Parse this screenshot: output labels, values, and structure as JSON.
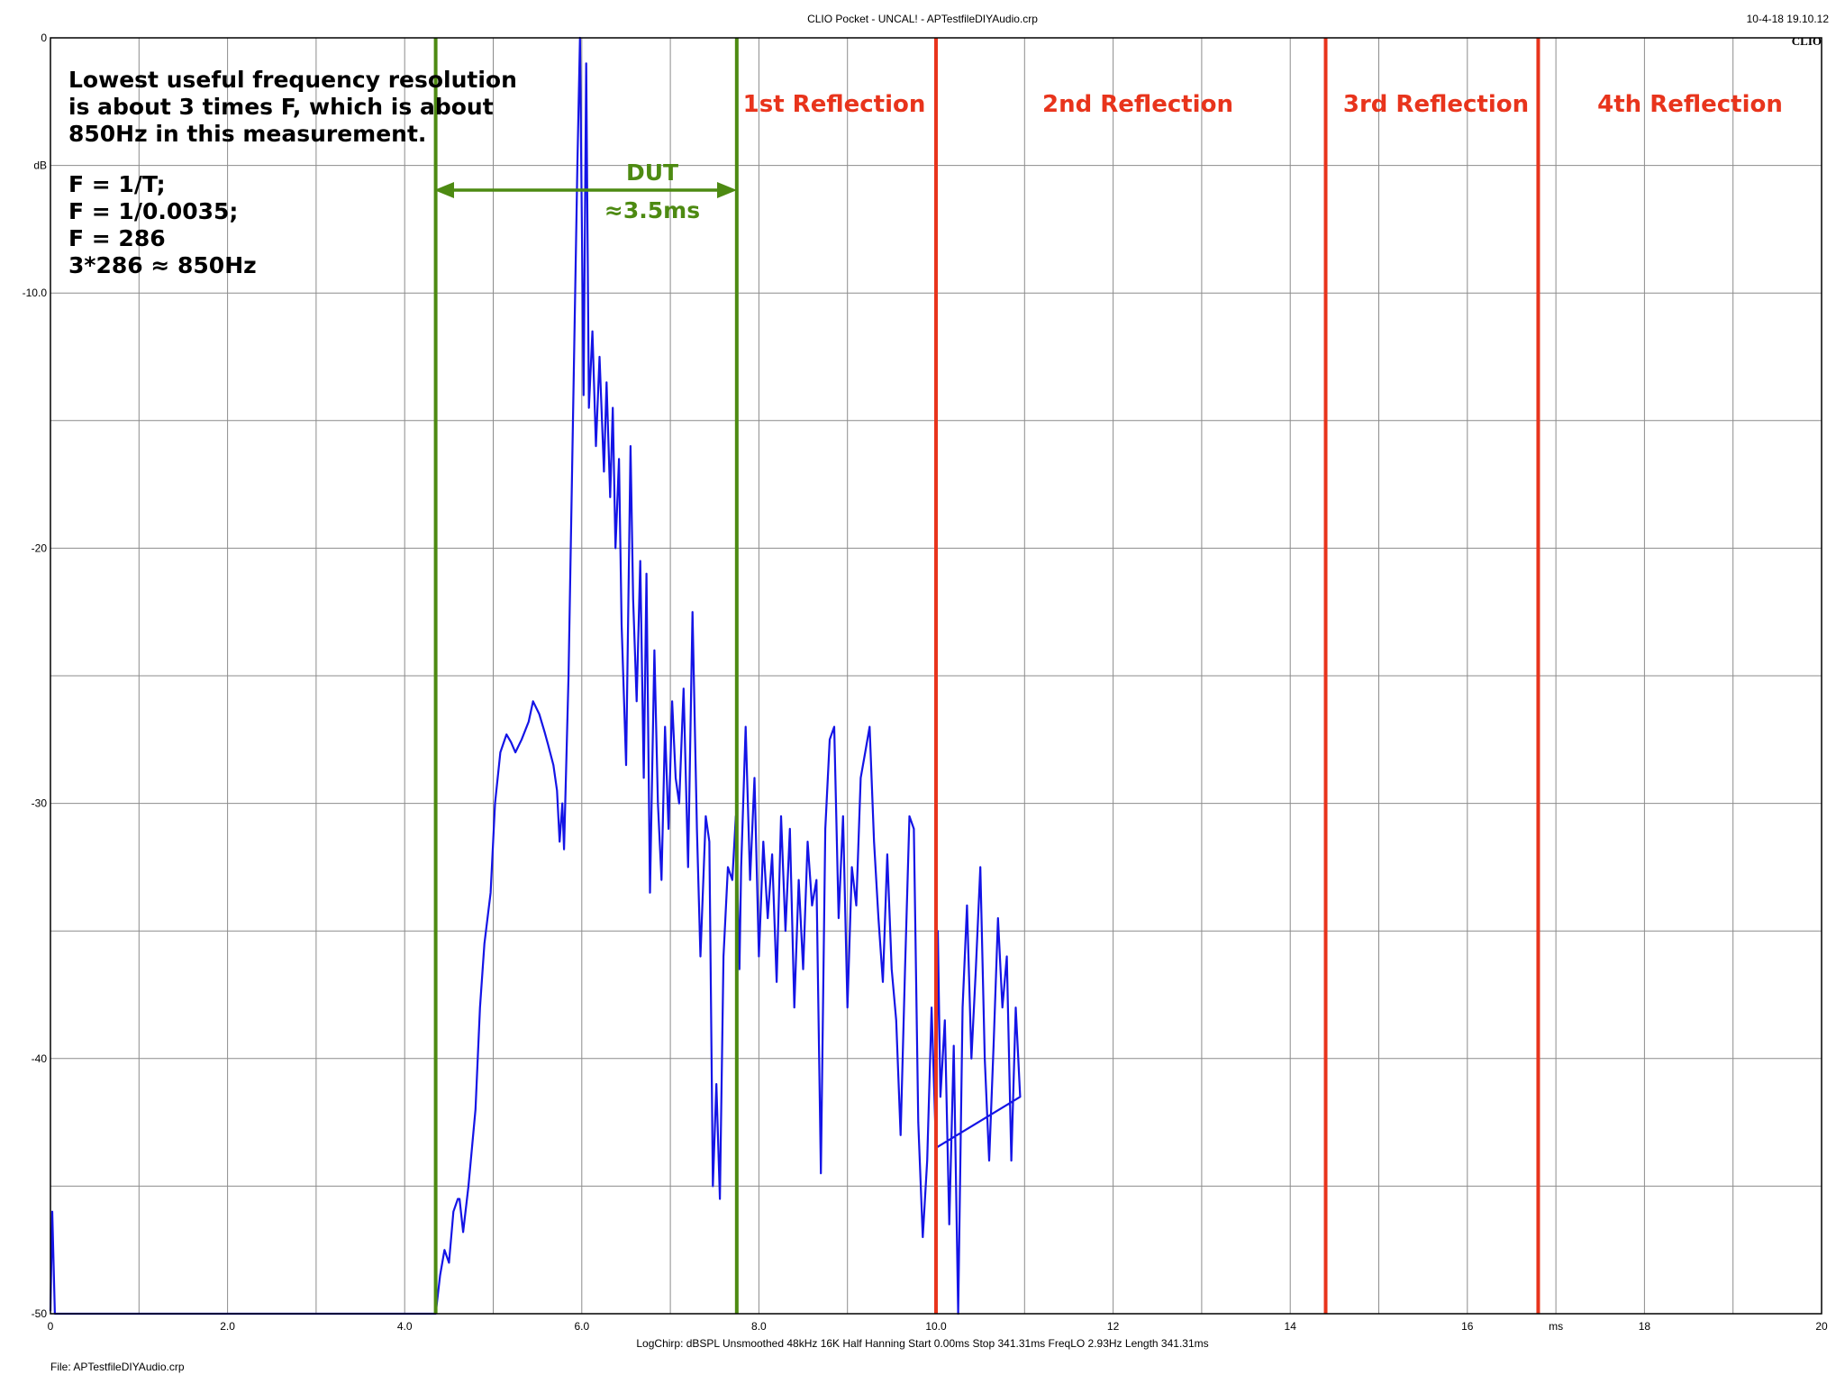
{
  "header": {
    "title": "CLIO Pocket - UNCAL! - APTestfileDIYAudio.crp",
    "date": "10-4-18 19.10.12",
    "brand": "CLIO"
  },
  "footer": {
    "params": "LogChirp:  dBSPL  Unsmoothed  48kHz  16K  Half Hanning  Start 0.00ms  Stop 341.31ms  FreqLO 2.93Hz  Length 341.31ms",
    "file": "File: APTestfileDIYAudio.crp"
  },
  "annotations": {
    "note_lines": [
      "Lowest useful frequency resolution",
      "is about 3 times F, which is about",
      "850Hz in this measurement."
    ],
    "formula_lines": [
      "F = 1/T;",
      "F = 1/0.0035;",
      "F = 286",
      "3*286 ≈ 850Hz"
    ],
    "dut_label": "DUT",
    "dut_time": "≈3.5ms",
    "reflections": [
      "1st Reflection",
      "2nd Reflection",
      "3rd Reflection",
      "4th Reflection"
    ]
  },
  "colors": {
    "trace": "#1414e6",
    "marker_green": "#4d8a12",
    "marker_red": "#e8341c",
    "grid": "#8c8c8c"
  },
  "chart_data": {
    "type": "line",
    "title": "CLIO Pocket - UNCAL! - APTestfileDIYAudio.crp",
    "xlabel": "ms",
    "ylabel": "dB",
    "xlim": [
      0,
      20
    ],
    "ylim": [
      -50,
      0
    ],
    "grid": true,
    "x_ticks": [
      "0",
      "2.0",
      "4.0",
      "6.0",
      "8.0",
      "10.0",
      "12",
      "14",
      "16",
      "ms",
      "18",
      "20"
    ],
    "y_ticks": [
      "0",
      "dB",
      "-10.0",
      "-20",
      "-30",
      "-40",
      "-50"
    ],
    "markers": [
      {
        "x": 4.35,
        "color": "green"
      },
      {
        "x": 7.75,
        "color": "green"
      },
      {
        "x": 10.0,
        "color": "red"
      },
      {
        "x": 14.4,
        "color": "red"
      },
      {
        "x": 16.8,
        "color": "red"
      }
    ],
    "series": [
      {
        "points": [
          [
            0.0,
            -49.9
          ],
          [
            0.02,
            -46.0
          ],
          [
            0.05,
            -50.0
          ],
          [
            4.3,
            -50.0
          ],
          [
            4.35,
            -50.0
          ],
          [
            4.4,
            -48.5
          ],
          [
            4.45,
            -47.5
          ],
          [
            4.5,
            -48.0
          ],
          [
            4.55,
            -46.0
          ],
          [
            4.6,
            -45.5
          ],
          [
            4.62,
            -45.5
          ],
          [
            4.66,
            -46.8
          ],
          [
            4.72,
            -45.0
          ],
          [
            4.8,
            -42.0
          ],
          [
            4.85,
            -38.0
          ],
          [
            4.9,
            -35.5
          ],
          [
            4.97,
            -33.5
          ],
          [
            5.02,
            -30.0
          ],
          [
            5.08,
            -28.0
          ],
          [
            5.15,
            -27.3
          ],
          [
            5.2,
            -27.6
          ],
          [
            5.25,
            -28.0
          ],
          [
            5.32,
            -27.5
          ],
          [
            5.4,
            -26.8
          ],
          [
            5.45,
            -26.0
          ],
          [
            5.52,
            -26.5
          ],
          [
            5.58,
            -27.2
          ],
          [
            5.62,
            -27.7
          ],
          [
            5.68,
            -28.5
          ],
          [
            5.72,
            -29.5
          ],
          [
            5.75,
            -31.5
          ],
          [
            5.78,
            -30.0
          ],
          [
            5.8,
            -31.8
          ],
          [
            5.85,
            -25.0
          ],
          [
            5.9,
            -15.0
          ],
          [
            5.95,
            -5.0
          ],
          [
            5.98,
            0.0
          ],
          [
            6.02,
            -14.0
          ],
          [
            6.05,
            -1.0
          ],
          [
            6.08,
            -14.5
          ],
          [
            6.12,
            -11.5
          ],
          [
            6.16,
            -16.0
          ],
          [
            6.2,
            -12.5
          ],
          [
            6.25,
            -17.0
          ],
          [
            6.28,
            -13.5
          ],
          [
            6.32,
            -18.0
          ],
          [
            6.35,
            -14.5
          ],
          [
            6.38,
            -20.0
          ],
          [
            6.42,
            -16.5
          ],
          [
            6.45,
            -23.0
          ],
          [
            6.5,
            -28.5
          ],
          [
            6.55,
            -16.0
          ],
          [
            6.58,
            -22.0
          ],
          [
            6.62,
            -26.0
          ],
          [
            6.66,
            -20.5
          ],
          [
            6.7,
            -29.0
          ],
          [
            6.73,
            -21.0
          ],
          [
            6.77,
            -33.5
          ],
          [
            6.82,
            -24.0
          ],
          [
            6.86,
            -30.0
          ],
          [
            6.9,
            -33.0
          ],
          [
            6.94,
            -27.0
          ],
          [
            6.98,
            -31.0
          ],
          [
            7.02,
            -26.0
          ],
          [
            7.06,
            -29.0
          ],
          [
            7.1,
            -30.0
          ],
          [
            7.15,
            -25.5
          ],
          [
            7.2,
            -32.5
          ],
          [
            7.25,
            -22.5
          ],
          [
            7.3,
            -31.0
          ],
          [
            7.34,
            -36.0
          ],
          [
            7.4,
            -30.5
          ],
          [
            7.44,
            -31.5
          ],
          [
            7.48,
            -45.0
          ],
          [
            7.52,
            -41.0
          ],
          [
            7.56,
            -45.5
          ],
          [
            7.6,
            -36.0
          ],
          [
            7.65,
            -32.5
          ],
          [
            7.7,
            -33.0
          ],
          [
            7.74,
            -30.5
          ],
          [
            7.78,
            -36.5
          ],
          [
            7.8,
            -32.5
          ],
          [
            7.85,
            -27.0
          ],
          [
            7.9,
            -33.0
          ],
          [
            7.95,
            -29.0
          ],
          [
            8.0,
            -36.0
          ],
          [
            8.05,
            -31.5
          ],
          [
            8.1,
            -34.5
          ],
          [
            8.15,
            -32.0
          ],
          [
            8.2,
            -37.0
          ],
          [
            8.25,
            -30.5
          ],
          [
            8.3,
            -35.0
          ],
          [
            8.35,
            -31.0
          ],
          [
            8.4,
            -38.0
          ],
          [
            8.45,
            -33.0
          ],
          [
            8.5,
            -36.5
          ],
          [
            8.55,
            -31.5
          ],
          [
            8.6,
            -34.0
          ],
          [
            8.65,
            -33.0
          ],
          [
            8.7,
            -44.5
          ],
          [
            8.75,
            -31.0
          ],
          [
            8.8,
            -27.5
          ],
          [
            8.85,
            -27.0
          ],
          [
            8.9,
            -34.5
          ],
          [
            8.95,
            -30.5
          ],
          [
            9.0,
            -38.0
          ],
          [
            9.05,
            -32.5
          ],
          [
            9.1,
            -34.0
          ],
          [
            9.15,
            -29.0
          ],
          [
            9.2,
            -28.0
          ],
          [
            9.25,
            -27.0
          ],
          [
            9.3,
            -31.5
          ],
          [
            9.35,
            -34.5
          ],
          [
            9.4,
            -37.0
          ],
          [
            9.45,
            -32.0
          ],
          [
            9.5,
            -36.5
          ],
          [
            9.55,
            -38.5
          ],
          [
            9.6,
            -43.0
          ],
          [
            9.65,
            -36.5
          ],
          [
            9.7,
            -30.5
          ],
          [
            9.75,
            -31.0
          ],
          [
            9.8,
            -42.5
          ],
          [
            9.85,
            -47.0
          ],
          [
            9.9,
            -44.0
          ],
          [
            9.95,
            -38.0
          ],
          [
            10.0,
            -43.5
          ],
          [
            10.02,
            -35.0
          ],
          [
            10.05,
            -41.5
          ],
          [
            10.1,
            -38.5
          ],
          [
            10.15,
            -46.5
          ],
          [
            10.2,
            -39.5
          ],
          [
            10.25,
            -50.0
          ],
          [
            10.3,
            -38.0
          ],
          [
            10.35,
            -34.0
          ],
          [
            10.4,
            -40.0
          ],
          [
            10.45,
            -36.5
          ],
          [
            10.5,
            -32.5
          ],
          [
            10.55,
            -40.0
          ],
          [
            10.6,
            -44.0
          ],
          [
            10.65,
            -39.5
          ],
          [
            10.7,
            -34.5
          ],
          [
            10.75,
            -38.0
          ],
          [
            10.8,
            -36.0
          ],
          [
            10.85,
            -44.0
          ],
          [
            10.9,
            -38.0
          ],
          [
            10.95,
            -41.5
          ],
          [
            10.0,
            -43.5
          ]
        ]
      }
    ]
  }
}
